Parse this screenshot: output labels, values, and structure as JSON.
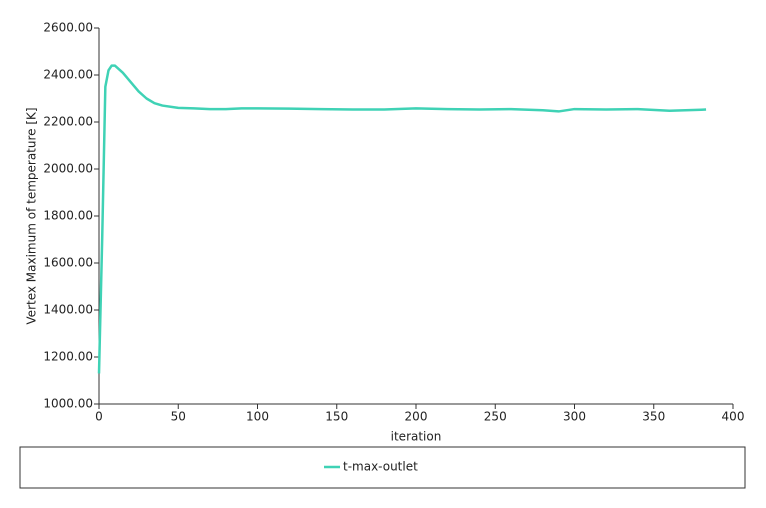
{
  "chart_data": {
    "type": "line",
    "x_label": "iteration",
    "y_label": "Vertex Maximum of temperature [K]",
    "x": [
      0,
      2,
      4,
      6,
      8,
      10,
      15,
      20,
      25,
      30,
      35,
      40,
      50,
      60,
      70,
      80,
      90,
      100,
      120,
      140,
      160,
      180,
      200,
      220,
      240,
      260,
      280,
      290,
      300,
      320,
      340,
      360,
      380,
      383
    ],
    "series": [
      {
        "name": "t-max-outlet",
        "color": "#3fd2b5",
        "values": [
          1130,
          1700,
          2350,
          2420,
          2440,
          2440,
          2410,
          2370,
          2330,
          2300,
          2280,
          2270,
          2260,
          2258,
          2255,
          2255,
          2258,
          2258,
          2257,
          2255,
          2253,
          2253,
          2258,
          2255,
          2253,
          2255,
          2250,
          2245,
          2255,
          2253,
          2255,
          2248,
          2252,
          2253
        ]
      }
    ],
    "xlim": [
      0,
      400
    ],
    "ylim": [
      1000,
      2600
    ],
    "xticks": [
      0,
      50,
      100,
      150,
      200,
      250,
      300,
      350,
      400
    ],
    "yticks": [
      {
        "value": 1000,
        "label": "1000.00"
      },
      {
        "value": 1200,
        "label": "1200.00"
      },
      {
        "value": 1400,
        "label": "1400.00"
      },
      {
        "value": 1600,
        "label": "1600.00"
      },
      {
        "value": 1800,
        "label": "1800.00"
      },
      {
        "value": 2000,
        "label": "2000.00"
      },
      {
        "value": 2200,
        "label": "2200.00"
      },
      {
        "value": 2400,
        "label": "2400.00"
      },
      {
        "value": 2600,
        "label": "2600.00"
      }
    ]
  }
}
